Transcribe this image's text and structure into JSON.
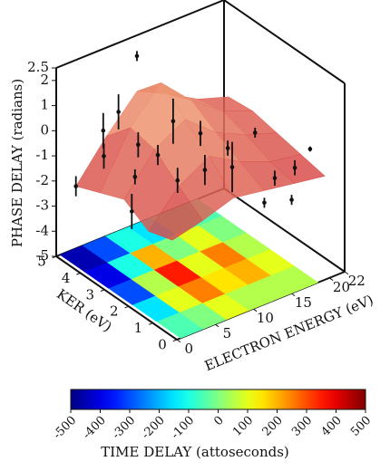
{
  "chart_data": {
    "type": "surface3d",
    "zlabel": "PHASE DELAY (radians)",
    "xlabel": "ELECTRON ENERGY (eV)",
    "ylabel": "KER (eV)",
    "xlim": [
      0,
      22
    ],
    "xticks": [
      0,
      5,
      10,
      15,
      20,
      22
    ],
    "ylim": [
      0,
      5
    ],
    "yticks": [
      0,
      1,
      2,
      3,
      4,
      5
    ],
    "zlim": [
      -5,
      2.5
    ],
    "zticks": [
      -5,
      -4,
      -3,
      -2,
      -1,
      0,
      1,
      2,
      2.5
    ],
    "surface": {
      "energy": [
        1,
        5,
        9,
        13,
        17,
        21
      ],
      "ker": [
        0.5,
        1.5,
        2.5,
        3.5,
        4.5
      ],
      "phase": [
        [
          -1.5,
          -1.2,
          -0.8,
          -1.0,
          -1.2,
          -1.4
        ],
        [
          -1.8,
          -0.5,
          0.2,
          -0.5,
          -1.0,
          -1.2
        ],
        [
          -1.2,
          0.3,
          1.0,
          0.0,
          -0.6,
          -1.0
        ],
        [
          -1.6,
          0.5,
          1.8,
          0.6,
          -0.3,
          -0.8
        ],
        [
          -2.0,
          -0.5,
          0.8,
          0.2,
          -0.5,
          -0.9
        ]
      ]
    },
    "points": {
      "energy": [
        1,
        1.5,
        3,
        2,
        4,
        5,
        6,
        7,
        8,
        9,
        9,
        10,
        11,
        12,
        13,
        15,
        14,
        16,
        18,
        20,
        16
      ],
      "ker": [
        4.5,
        3.5,
        4,
        2.5,
        3,
        4,
        3.5,
        3,
        2.5,
        4.5,
        3,
        2,
        2.5,
        1.5,
        2,
        1.5,
        0.8,
        1,
        0.8,
        0.8,
        0.3
      ],
      "phase": [
        -2.0,
        -0.2,
        0.3,
        -1.8,
        -1.0,
        0.8,
        -0.3,
        -0.5,
        -1.3,
        2.2,
        0.6,
        -0.8,
        0.2,
        -0.6,
        -0.3,
        0.4,
        -1.8,
        -1.2,
        -0.9,
        -0.4,
        -1.6
      ],
      "error": [
        0.4,
        0.5,
        0.7,
        0.7,
        0.3,
        0.7,
        0.5,
        0.4,
        0.5,
        0.2,
        0.9,
        0.6,
        0.5,
        1.0,
        0.3,
        0.2,
        0.2,
        0.3,
        0.3,
        0.1,
        0.2
      ]
    },
    "projection": {
      "energy": [
        2,
        5,
        8,
        11,
        14,
        17
      ],
      "ker": [
        0.5,
        1.5,
        2.5,
        3.5,
        4.5
      ],
      "time_delay": [
        [
          -50,
          0,
          100,
          50,
          50,
          50
        ],
        [
          -150,
          100,
          250,
          150,
          200,
          100
        ],
        [
          -300,
          50,
          350,
          100,
          250,
          50
        ],
        [
          -400,
          -100,
          200,
          0,
          100,
          0
        ],
        [
          -450,
          -300,
          -100,
          -150,
          -50,
          -50
        ]
      ]
    },
    "colorbar": {
      "label": "TIME DELAY (attoseconds)",
      "lim": [
        -500,
        500
      ],
      "ticks": [
        -500,
        -400,
        -300,
        -200,
        -100,
        0,
        100,
        200,
        300,
        400,
        500
      ]
    }
  }
}
